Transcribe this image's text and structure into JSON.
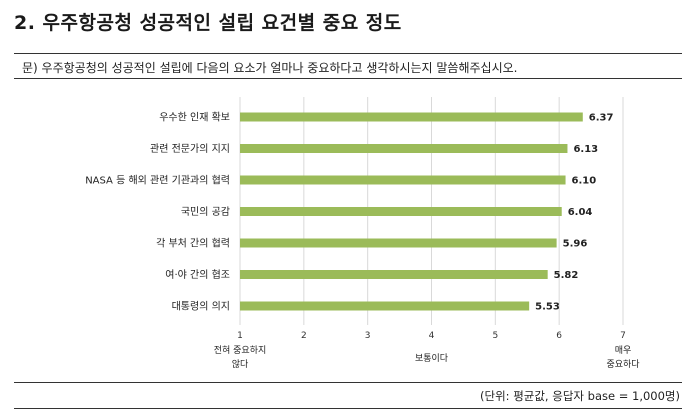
{
  "section": {
    "title": "2. 우주항공청 성공적인 설립 요건별 중요 정도"
  },
  "question": {
    "text": "문) 우주항공청의 성공적인 설립에 다음의 요소가 얼마나 중요하다고 생각하시는지 말씀해주십시오."
  },
  "chart_data": {
    "type": "bar",
    "orientation": "horizontal",
    "categories": [
      "우수한 인재 확보",
      "관련 전문가의 지지",
      "NASA 등 해외 관련 기관과의 협력",
      "국민의 공감",
      "각 부처 간의 협력",
      "여·야 간의 협조",
      "대통령의 의지"
    ],
    "values": [
      6.37,
      6.13,
      6.1,
      6.04,
      5.96,
      5.82,
      5.53
    ],
    "value_labels": [
      "6.37",
      "6.13",
      "6.10",
      "6.04",
      "5.96",
      "5.82",
      "5.53"
    ],
    "xlim": [
      1,
      7
    ],
    "ticks": [
      "1",
      "2",
      "3",
      "4",
      "5",
      "6",
      "7"
    ],
    "tick_values": [
      1,
      2,
      3,
      4,
      5,
      6,
      7
    ],
    "anchors": [
      {
        "at": 1,
        "lines": [
          "전혀 중요하지",
          "않다"
        ]
      },
      {
        "at": 4,
        "lines": [
          "보통이다"
        ]
      },
      {
        "at": 7,
        "lines": [
          "매우",
          "중요하다"
        ]
      }
    ],
    "bar_color": "#9bbb59",
    "grid": true,
    "grid_color": "#d9d9d9",
    "legend": "none"
  },
  "footer": {
    "note": "(단위: 평균값, 응답자 base = 1,000명)"
  }
}
